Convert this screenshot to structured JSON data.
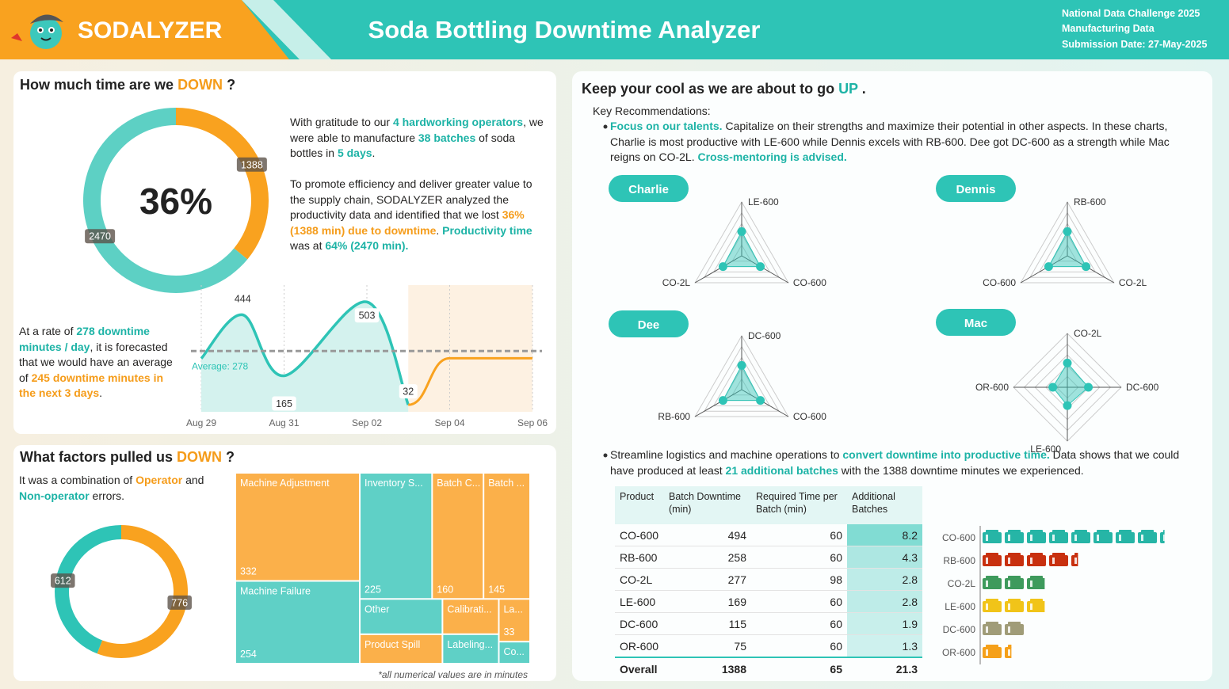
{
  "header": {
    "brand": "SODALYZER",
    "title": "Soda Bottling Downtime Analyzer",
    "info": [
      "National Data Challenge 2025",
      "Manufacturing Data",
      "Submission Date: 27-May-2025"
    ]
  },
  "panel_time": {
    "title": [
      {
        "t": "How much time are we "
      },
      {
        "t": "DOWN",
        "c": "orange"
      },
      {
        "t": " ?"
      }
    ],
    "intro": [
      {
        "t": "With gratitude to our "
      },
      {
        "t": "4 hardworking operators",
        "c": "teal"
      },
      {
        "t": ", we were able to manufacture "
      },
      {
        "t": "38 batches",
        "c": "teal"
      },
      {
        "t": " of soda bottles in "
      },
      {
        "t": "5 days",
        "c": "teal"
      },
      {
        "t": "."
      }
    ],
    "finding": [
      {
        "t": "To promote efficiency and deliver greater value to the supply chain, SODALYZER analyzed the productivity data and identified that we lost "
      },
      {
        "t": "36% (1388 min) due to downtime",
        "c": "orange"
      },
      {
        "t": ". "
      },
      {
        "t": "Productivity time",
        "c": "teal"
      },
      {
        "t": " was at "
      },
      {
        "t": "64% (2470 min).",
        "c": "teal"
      }
    ],
    "forecast": [
      {
        "t": "At a rate of "
      },
      {
        "t": "278 downtime minutes / day",
        "c": "teal"
      },
      {
        "t": ", it is forecasted that we would have an average of "
      },
      {
        "t": "245 downtime minutes in the next 3 days",
        "c": "orange"
      },
      {
        "t": "."
      }
    ]
  },
  "panel_factors": {
    "title": [
      {
        "t": "What factors pulled us "
      },
      {
        "t": "DOWN",
        "c": "orange"
      },
      {
        "t": " ?"
      }
    ],
    "text": [
      {
        "t": "It was a combination of "
      },
      {
        "t": "Operator",
        "c": "orange"
      },
      {
        "t": " and "
      },
      {
        "t": "Non-operator",
        "c": "teal"
      },
      {
        "t": " errors."
      }
    ],
    "footnote": "*all numerical values are in minutes"
  },
  "panel_up": {
    "title": [
      {
        "t": "Keep your cool as we are about to go "
      },
      {
        "t": "UP",
        "c": "teal"
      },
      {
        "t": " ."
      }
    ],
    "heading": "Key Recommendations:",
    "bullets": [
      [
        {
          "t": "Focus on our talents.",
          "c": "teal"
        },
        {
          "t": " Capitalize on their strengths and maximize their potential in other aspects. In these charts, Charlie is most productive with LE-600 while Dennis excels with RB-600. Dee got DC-600 as a strength while Mac reigns on CO-2L. "
        },
        {
          "t": "Cross-mentoring is advised.",
          "c": "teal"
        }
      ],
      [
        {
          "t": "Streamline logistics and machine operations to "
        },
        {
          "t": "convert downtime into productive time.",
          "c": "teal"
        },
        {
          "t": " Data shows that we could have produced at least "
        },
        {
          "t": "21 additional batches",
          "c": "teal"
        },
        {
          "t": " with the 1388 downtime minutes we experienced."
        }
      ]
    ]
  },
  "chart_data": [
    {
      "type": "donut",
      "center_label": "36%",
      "values": [
        1388,
        2470
      ],
      "colors": [
        "#f9a21f",
        "#5dd0c4"
      ]
    },
    {
      "type": "line",
      "xlim": [
        "Aug 29",
        "Sep 06"
      ],
      "xticks": [
        "Aug 29",
        "Aug 31",
        "Sep 02",
        "Sep 04",
        "Sep 06"
      ],
      "ylim": [
        0,
        580
      ],
      "actual": {
        "x": [
          "Aug 29",
          "Aug 30",
          "Aug 31",
          "Sep 02",
          "Sep 03"
        ],
        "values": [
          244,
          444,
          165,
          503,
          32
        ],
        "value_labels": [
          null,
          "444",
          "165",
          "503",
          "32"
        ],
        "color": "#2ec4b6"
      },
      "forecast": {
        "x": [
          "Sep 04",
          "Sep 05",
          "Sep 06"
        ],
        "values": [
          245,
          245,
          245
        ],
        "color": "#f9a21f"
      },
      "average": 278,
      "average_label": "Average: 278"
    },
    {
      "type": "donut",
      "values": [
        776,
        612
      ],
      "colors": [
        "#f9a21f",
        "#2ec4b6"
      ]
    },
    {
      "type": "treemap",
      "labels": [
        "Machine Adjustment",
        "Machine Failure",
        "Inventory S...",
        "Batch C...",
        "Batch ...",
        "Other",
        "Product Spill",
        "Calibrati...",
        "Labeling...",
        "La...",
        "Co..."
      ],
      "values": [
        332,
        254,
        225,
        160,
        145,
        72,
        60,
        49,
        41,
        33,
        17
      ],
      "value_labels": [
        "332",
        "254",
        "225",
        "160",
        "145",
        null,
        null,
        null,
        null,
        "33",
        null
      ],
      "colors": [
        "#fbb04a",
        "#5fd0c6",
        "#5fd0c6",
        "#fbb04a",
        "#fbb04a",
        "#5fd0c6",
        "#fbb04a",
        "#fbb04a",
        "#5fd0c6",
        "#fbb04a",
        "#5fd0c6"
      ]
    },
    {
      "type": "radar",
      "name": "Charlie",
      "axes": [
        "LE-600",
        "CO-600",
        "CO-2L"
      ],
      "values": [
        45,
        40,
        40
      ],
      "rlim": [
        0,
        100
      ],
      "color": "#2ec4b6"
    },
    {
      "type": "radar",
      "name": "Dennis",
      "axes": [
        "RB-600",
        "CO-2L",
        "CO-600"
      ],
      "values": [
        45,
        40,
        40
      ],
      "rlim": [
        0,
        100
      ],
      "color": "#2ec4b6"
    },
    {
      "type": "radar",
      "name": "Dee",
      "axes": [
        "DC-600",
        "CO-600",
        "RB-600"
      ],
      "values": [
        45,
        40,
        40
      ],
      "rlim": [
        0,
        100
      ],
      "color": "#2ec4b6"
    },
    {
      "type": "radar",
      "name": "Mac",
      "axes": [
        "CO-2L",
        "DC-600",
        "LE-600",
        "OR-600"
      ],
      "values": [
        45,
        39,
        34,
        27
      ],
      "rlim": [
        0,
        100
      ],
      "color": "#2ec4b6"
    },
    {
      "type": "icon_bar",
      "categories": [
        "CO-600",
        "RB-600",
        "CO-2L",
        "LE-600",
        "DC-600",
        "OR-600"
      ],
      "values": [
        8.2,
        4.3,
        2.8,
        2.8,
        1.9,
        1.3
      ],
      "colors": [
        "#26b5a6",
        "#c8300f",
        "#3e9a5c",
        "#f1c419",
        "#a09c78",
        "#f5a01a"
      ]
    }
  ],
  "table": {
    "columns": [
      "Product",
      "Batch Downtime (min)",
      "Required Time per Batch (min)",
      "Additional Batches"
    ],
    "rows": [
      [
        "CO-600",
        494,
        60,
        8.2
      ],
      [
        "RB-600",
        258,
        60,
        4.3
      ],
      [
        "CO-2L",
        277,
        98,
        2.8
      ],
      [
        "LE-600",
        169,
        60,
        2.8
      ],
      [
        "DC-600",
        115,
        60,
        1.9
      ],
      [
        "OR-600",
        75,
        60,
        1.3
      ]
    ],
    "total": [
      "Overall",
      1388,
      65,
      21.3
    ]
  }
}
